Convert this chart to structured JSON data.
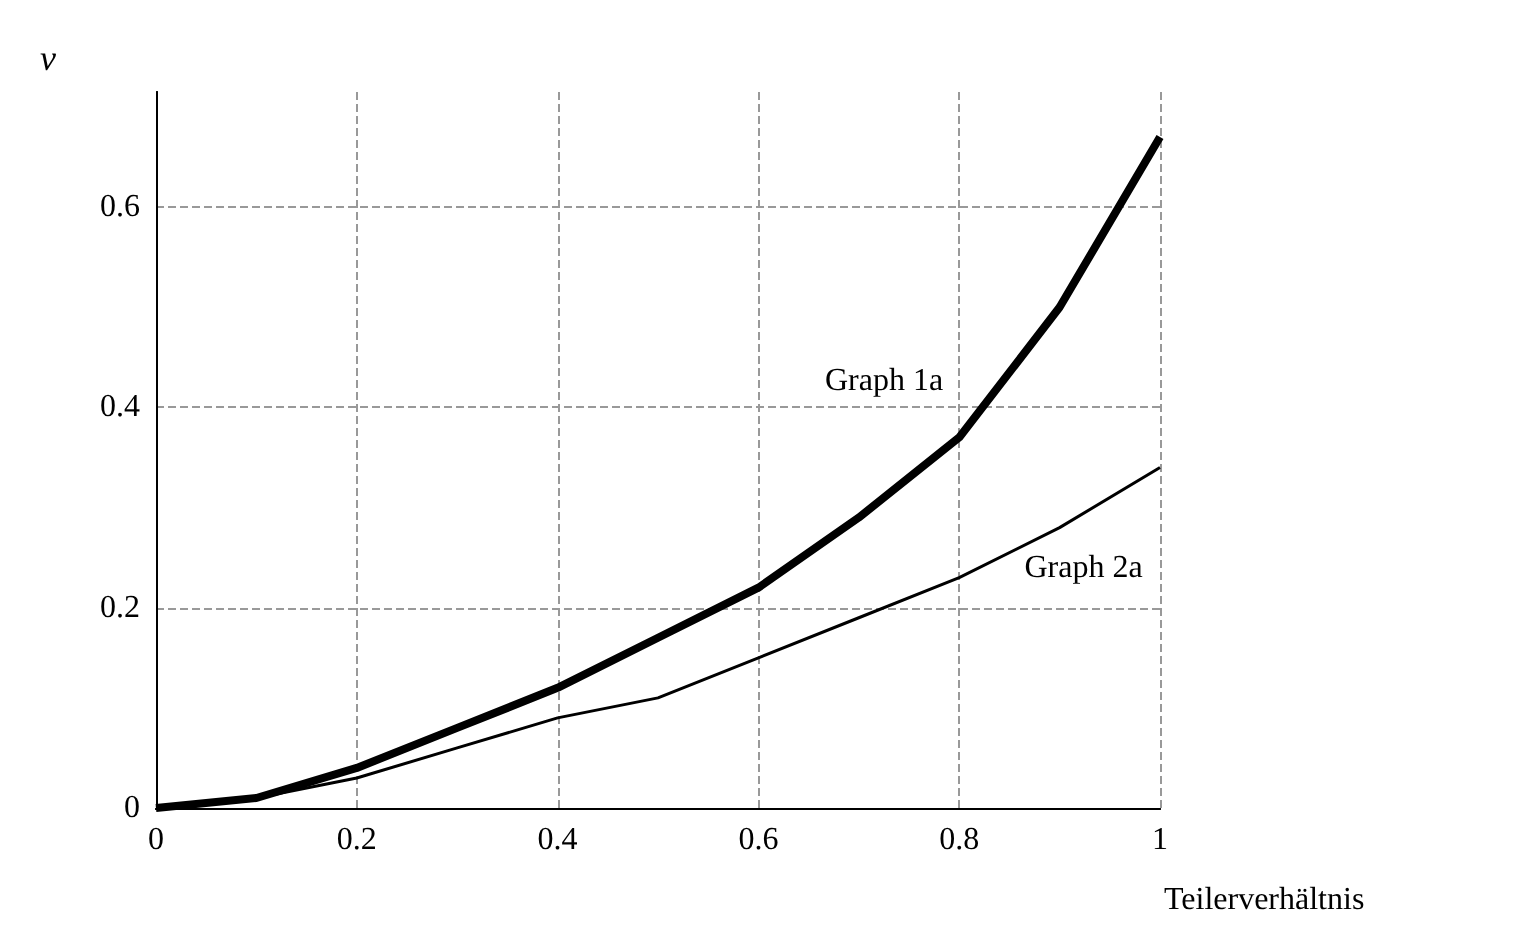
{
  "chart_data": {
    "type": "line",
    "xlabel": "Teilerverhältnis",
    "ylabel": "ν",
    "x": [
      0,
      0.1,
      0.2,
      0.3,
      0.4,
      0.5,
      0.6,
      0.7,
      0.8,
      0.9,
      1
    ],
    "series": [
      {
        "name": "Graph 1a",
        "color": "#000000",
        "values": [
          0,
          0.01,
          0.04,
          0.08,
          0.12,
          0.17,
          0.22,
          0.29,
          0.37,
          0.5,
          0.67
        ]
      },
      {
        "name": "Graph 2a",
        "color": "#000000",
        "values": [
          0,
          0.01,
          0.03,
          0.06,
          0.09,
          0.11,
          0.15,
          0.19,
          0.23,
          0.28,
          0.34
        ]
      }
    ],
    "xlim": [
      0,
      1
    ],
    "ylim": [
      0,
      0.715
    ],
    "xticks": [
      0,
      0.2,
      0.4,
      0.6,
      0.8,
      1
    ],
    "yticks": [
      0,
      0.2,
      0.4,
      0.6
    ],
    "grid": true,
    "line_style": "solid",
    "marker": "none",
    "legend": false
  }
}
